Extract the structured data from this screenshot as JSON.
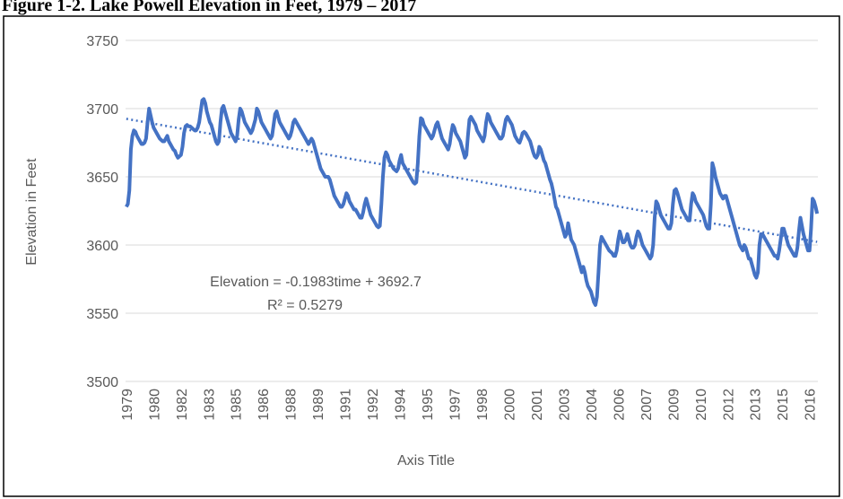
{
  "chart_data": {
    "type": "line",
    "title": "Figure 1-2. Lake Powell Elevation in Feet, 1979 – 2017",
    "y_label": "Elevation in Feet",
    "x_label": "Axis Title",
    "ylim": [
      3500,
      3750
    ],
    "yticks": [
      3500,
      3550,
      3600,
      3650,
      3700,
      3750
    ],
    "grid": true,
    "categories": [
      "1979",
      null,
      null,
      null,
      null,
      null,
      null,
      null,
      null,
      null,
      null,
      null,
      null,
      null,
      null,
      null,
      null,
      null,
      "1980",
      null,
      null,
      null,
      null,
      null,
      null,
      null,
      null,
      null,
      null,
      null,
      null,
      null,
      null,
      null,
      null,
      null,
      "1982",
      null,
      null,
      null,
      null,
      null,
      null,
      null,
      null,
      null,
      null,
      null,
      null,
      null,
      null,
      null,
      null,
      null,
      "1983",
      null,
      null,
      null,
      null,
      null,
      null,
      null,
      null,
      null,
      null,
      null,
      null,
      null,
      null,
      null,
      null,
      null,
      "1985",
      null,
      null,
      null,
      null,
      null,
      null,
      null,
      null,
      null,
      null,
      null,
      null,
      null,
      null,
      null,
      null,
      null,
      "1986",
      null,
      null,
      null,
      null,
      null,
      null,
      null,
      null,
      null,
      null,
      null,
      null,
      null,
      null,
      null,
      null,
      null,
      "1988",
      null,
      null,
      null,
      null,
      null,
      null,
      null,
      null,
      null,
      null,
      null,
      null,
      null,
      null,
      null,
      null,
      null,
      "1989",
      null,
      null,
      null,
      null,
      null,
      null,
      null,
      null,
      null,
      null,
      null,
      null,
      null,
      null,
      null,
      null,
      null,
      "1991",
      null,
      null,
      null,
      null,
      null,
      null,
      null,
      null,
      null,
      null,
      null,
      null,
      null,
      null,
      null,
      null,
      null,
      "1992",
      null,
      null,
      null,
      null,
      null,
      null,
      null,
      null,
      null,
      null,
      null,
      null,
      null,
      null,
      null,
      null,
      null,
      "1994",
      null,
      null,
      null,
      null,
      null,
      null,
      null,
      null,
      null,
      null,
      null,
      null,
      null,
      null,
      null,
      null,
      null,
      "1995",
      null,
      null,
      null,
      null,
      null,
      null,
      null,
      null,
      null,
      null,
      null,
      null,
      null,
      null,
      null,
      null,
      null,
      "1997",
      null,
      null,
      null,
      null,
      null,
      null,
      null,
      null,
      null,
      null,
      null,
      null,
      null,
      null,
      null,
      null,
      null,
      "1998",
      null,
      null,
      null,
      null,
      null,
      null,
      null,
      null,
      null,
      null,
      null,
      null,
      null,
      null,
      null,
      null,
      null,
      "2000",
      null,
      null,
      null,
      null,
      null,
      null,
      null,
      null,
      null,
      null,
      null,
      null,
      null,
      null,
      null,
      null,
      null,
      "2001",
      null,
      null,
      null,
      null,
      null,
      null,
      null,
      null,
      null,
      null,
      null,
      null,
      null,
      null,
      null,
      null,
      null,
      "2003",
      null,
      null,
      null,
      null,
      null,
      null,
      null,
      null,
      null,
      null,
      null,
      null,
      null,
      null,
      null,
      null,
      null,
      "2004",
      null,
      null,
      null,
      null,
      null,
      null,
      null,
      null,
      null,
      null,
      null,
      null,
      null,
      null,
      null,
      null,
      null,
      "2006",
      null,
      null,
      null,
      null,
      null,
      null,
      null,
      null,
      null,
      null,
      null,
      null,
      null,
      null,
      null,
      null,
      null,
      "2007",
      null,
      null,
      null,
      null,
      null,
      null,
      null,
      null,
      null,
      null,
      null,
      null,
      null,
      null,
      null,
      null,
      null,
      "2009",
      null,
      null,
      null,
      null,
      null,
      null,
      null,
      null,
      null,
      null,
      null,
      null,
      null,
      null,
      null,
      null,
      null,
      "2010",
      null,
      null,
      null,
      null,
      null,
      null,
      null,
      null,
      null,
      null,
      null,
      null,
      null,
      null,
      null,
      null,
      null,
      "2012",
      null,
      null,
      null,
      null,
      null,
      null,
      null,
      null,
      null,
      null,
      null,
      null,
      null,
      null,
      null,
      null,
      null,
      "2013",
      null,
      null,
      null,
      null,
      null,
      null,
      null,
      null,
      null,
      null,
      null,
      null,
      null,
      null,
      null,
      null,
      null,
      "2015",
      null,
      null,
      null,
      null,
      null,
      null,
      null,
      null,
      null,
      null,
      null,
      null,
      null,
      null,
      null,
      null,
      null,
      "2016",
      null,
      null,
      null,
      null,
      null
    ],
    "series": [
      {
        "color": "#4472c4",
        "values": [
          3628,
          3630,
          3640,
          3670,
          3680,
          3684,
          3683,
          3680,
          3678,
          3676,
          3674,
          3674,
          3675,
          3678,
          3690,
          3700,
          3695,
          3690,
          3686,
          3684,
          3682,
          3680,
          3678,
          3677,
          3676,
          3676,
          3678,
          3680,
          3676,
          3674,
          3672,
          3670,
          3669,
          3666,
          3664,
          3665,
          3666,
          3672,
          3682,
          3687,
          3688,
          3687,
          3687,
          3686,
          3685,
          3684,
          3684,
          3686,
          3690,
          3698,
          3706,
          3707,
          3704,
          3698,
          3694,
          3690,
          3688,
          3684,
          3680,
          3676,
          3674,
          3676,
          3690,
          3700,
          3702,
          3698,
          3694,
          3690,
          3686,
          3682,
          3680,
          3678,
          3676,
          3680,
          3692,
          3700,
          3698,
          3694,
          3690,
          3688,
          3686,
          3684,
          3682,
          3684,
          3688,
          3692,
          3700,
          3698,
          3694,
          3690,
          3688,
          3686,
          3684,
          3682,
          3680,
          3678,
          3680,
          3688,
          3696,
          3698,
          3694,
          3690,
          3688,
          3686,
          3684,
          3682,
          3680,
          3678,
          3680,
          3684,
          3690,
          3692,
          3690,
          3688,
          3686,
          3684,
          3682,
          3680,
          3678,
          3676,
          3674,
          3676,
          3678,
          3676,
          3672,
          3668,
          3664,
          3660,
          3656,
          3654,
          3652,
          3650,
          3650,
          3650,
          3648,
          3644,
          3640,
          3636,
          3634,
          3632,
          3630,
          3628,
          3628,
          3630,
          3634,
          3638,
          3636,
          3632,
          3630,
          3628,
          3626,
          3626,
          3624,
          3622,
          3620,
          3620,
          3624,
          3630,
          3634,
          3630,
          3626,
          3622,
          3620,
          3618,
          3616,
          3614,
          3613,
          3614,
          3630,
          3650,
          3664,
          3668,
          3666,
          3662,
          3660,
          3658,
          3656,
          3655,
          3654,
          3656,
          3662,
          3666,
          3660,
          3658,
          3656,
          3654,
          3652,
          3650,
          3648,
          3646,
          3645,
          3646,
          3660,
          3680,
          3693,
          3692,
          3688,
          3686,
          3684,
          3682,
          3680,
          3678,
          3680,
          3684,
          3688,
          3690,
          3686,
          3682,
          3678,
          3676,
          3674,
          3672,
          3670,
          3674,
          3682,
          3688,
          3686,
          3682,
          3680,
          3678,
          3676,
          3672,
          3668,
          3664,
          3666,
          3680,
          3692,
          3694,
          3692,
          3690,
          3688,
          3684,
          3682,
          3680,
          3678,
          3676,
          3680,
          3690,
          3696,
          3694,
          3690,
          3688,
          3686,
          3684,
          3682,
          3680,
          3678,
          3678,
          3680,
          3686,
          3692,
          3694,
          3692,
          3690,
          3688,
          3684,
          3680,
          3678,
          3676,
          3675,
          3678,
          3682,
          3683,
          3682,
          3680,
          3678,
          3676,
          3672,
          3668,
          3665,
          3664,
          3666,
          3672,
          3670,
          3666,
          3662,
          3660,
          3656,
          3652,
          3648,
          3645,
          3640,
          3634,
          3628,
          3626,
          3622,
          3618,
          3614,
          3610,
          3606,
          3608,
          3616,
          3610,
          3604,
          3602,
          3600,
          3596,
          3592,
          3588,
          3584,
          3580,
          3584,
          3580,
          3574,
          3570,
          3568,
          3566,
          3562,
          3558,
          3556,
          3562,
          3580,
          3600,
          3606,
          3604,
          3602,
          3600,
          3598,
          3596,
          3595,
          3594,
          3592,
          3592,
          3596,
          3604,
          3610,
          3606,
          3602,
          3602,
          3604,
          3608,
          3604,
          3600,
          3598,
          3598,
          3600,
          3606,
          3610,
          3608,
          3604,
          3600,
          3598,
          3596,
          3594,
          3592,
          3590,
          3592,
          3600,
          3620,
          3632,
          3630,
          3626,
          3622,
          3620,
          3618,
          3616,
          3614,
          3612,
          3612,
          3616,
          3630,
          3640,
          3641,
          3638,
          3634,
          3630,
          3626,
          3624,
          3622,
          3620,
          3618,
          3618,
          3630,
          3638,
          3636,
          3632,
          3630,
          3628,
          3626,
          3624,
          3622,
          3618,
          3614,
          3612,
          3612,
          3630,
          3660,
          3656,
          3650,
          3646,
          3642,
          3638,
          3636,
          3634,
          3636,
          3636,
          3632,
          3628,
          3624,
          3620,
          3616,
          3612,
          3608,
          3604,
          3600,
          3598,
          3596,
          3600,
          3598,
          3594,
          3590,
          3590,
          3586,
          3582,
          3578,
          3576,
          3580,
          3600,
          3608,
          3608,
          3606,
          3604,
          3602,
          3600,
          3598,
          3596,
          3594,
          3592,
          3592,
          3590,
          3596,
          3604,
          3612,
          3612,
          3608,
          3604,
          3600,
          3598,
          3596,
          3594,
          3592,
          3592,
          3598,
          3610,
          3620,
          3614,
          3608,
          3604,
          3600,
          3596,
          3596,
          3612,
          3634,
          3632,
          3628,
          3623
        ]
      }
    ],
    "trendline": {
      "slope": -0.1983,
      "intercept": 3692.7,
      "color": "#4472c4",
      "equation": "Elevation = -0.1983time + 3692.7",
      "r_squared_label": "R² = 0.5279"
    }
  }
}
